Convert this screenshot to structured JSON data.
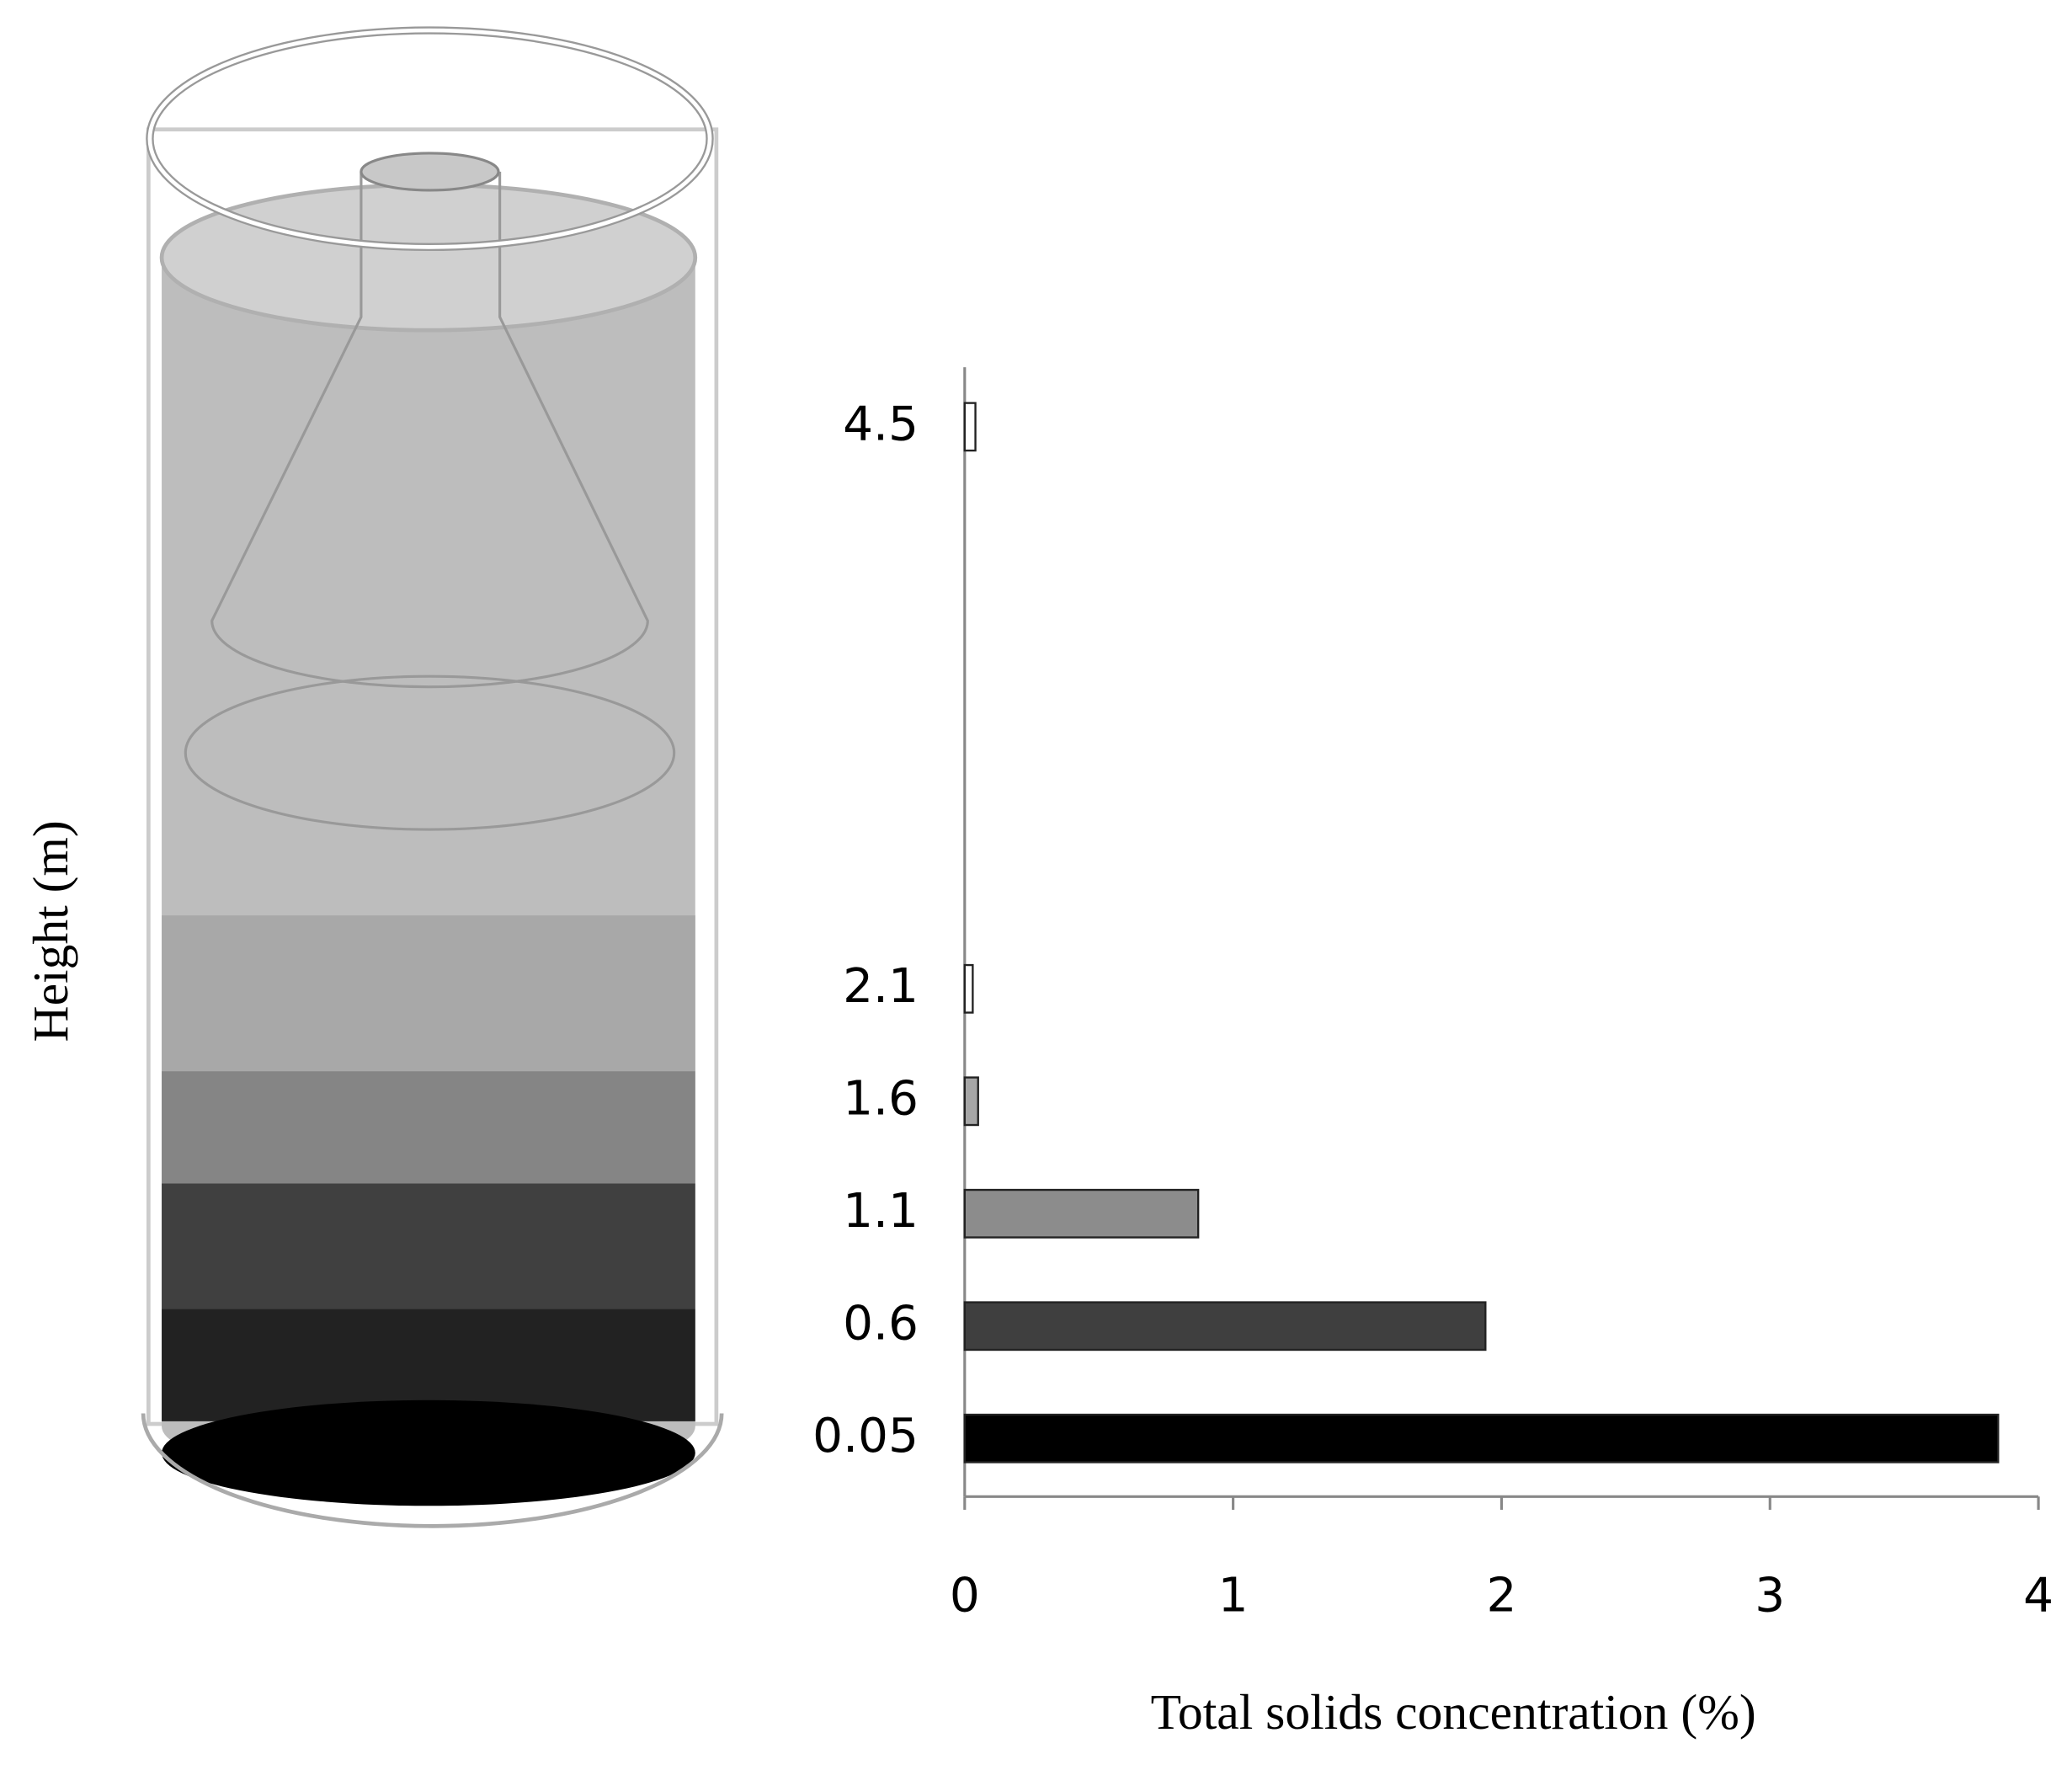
{
  "chart_data": {
    "type": "hbar",
    "categories": [
      "0.05",
      "0.6",
      "1.1",
      "1.6",
      "2.1",
      null,
      null,
      null,
      null,
      "4.5"
    ],
    "values": [
      3.85,
      1.94,
      0.87,
      0.05,
      0.03,
      null,
      null,
      null,
      null,
      0.04
    ],
    "colors": [
      "#000000",
      "#3f3f3f",
      "#8c8c8c",
      "#a6a6a6",
      "#ffffff",
      null,
      null,
      null,
      null,
      "#ffffff"
    ],
    "xlim": [
      0,
      4
    ],
    "xticks": [
      0,
      1,
      2,
      3,
      4
    ],
    "x_label": "Total solids concentration (%)",
    "y_label": "Height (m)"
  }
}
